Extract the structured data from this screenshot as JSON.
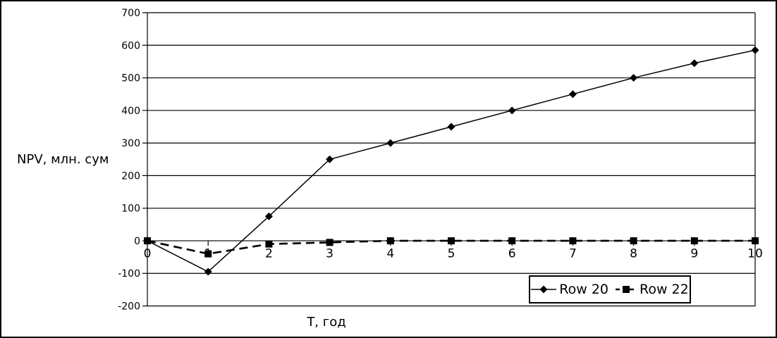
{
  "figure": {
    "background": "#ffffff",
    "border_color": "#000000"
  },
  "chart_data": {
    "type": "line",
    "title": "",
    "xlabel": "T, год",
    "ylabel": "NPV, млн. сум",
    "x": [
      0,
      1,
      2,
      3,
      4,
      5,
      6,
      7,
      8,
      9,
      10
    ],
    "xlim": [
      0,
      10
    ],
    "ylim": [
      -200,
      700
    ],
    "y_ticks": [
      700,
      600,
      500,
      400,
      300,
      200,
      100,
      0,
      -100,
      -200
    ],
    "grid": "horizontal",
    "gridline_color": "#000000",
    "axis_color": "#000000",
    "legend_position": "inside-bottom-right",
    "series": [
      {
        "name": "Row 20",
        "marker": "diamond",
        "line": "solid",
        "color": "#000000",
        "values": [
          0,
          -95,
          75,
          250,
          300,
          350,
          400,
          450,
          500,
          545,
          585
        ]
      },
      {
        "name": "Row 22",
        "marker": "square",
        "line": "dashed",
        "color": "#000000",
        "values": [
          0,
          -40,
          -10,
          -5,
          0,
          0,
          0,
          0,
          0,
          0,
          0
        ]
      }
    ]
  }
}
